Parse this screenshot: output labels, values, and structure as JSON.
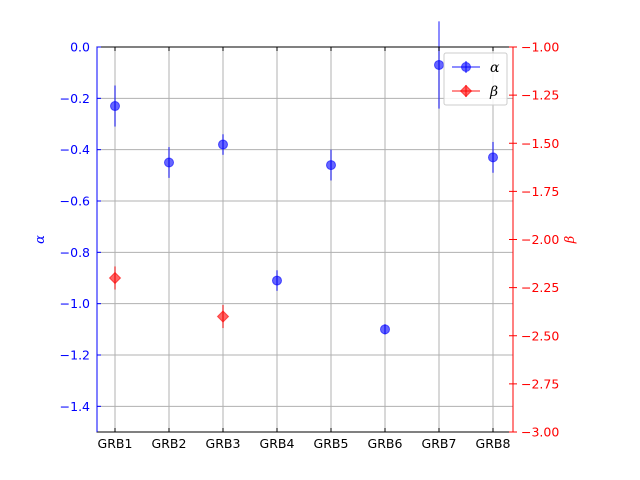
{
  "chart_data": {
    "type": "scatter",
    "categories": [
      "GRB1",
      "GRB2",
      "GRB3",
      "GRB4",
      "GRB5",
      "GRB6",
      "GRB7",
      "GRB8"
    ],
    "series": [
      {
        "name": "α",
        "axis": "left",
        "color": "#0000ff",
        "marker": "circle",
        "values": [
          -0.23,
          -0.45,
          -0.38,
          -0.91,
          -0.46,
          -1.1,
          -0.07,
          -0.43
        ],
        "errors": [
          0.08,
          0.06,
          0.04,
          0.04,
          0.06,
          0.02,
          0.17,
          0.06
        ]
      },
      {
        "name": "β",
        "axis": "right",
        "color": "#ff0000",
        "marker": "diamond",
        "values": [
          -2.2,
          null,
          -2.4,
          null,
          null,
          null,
          null,
          null
        ],
        "errors": [
          0.06,
          null,
          0.06,
          null,
          null,
          null,
          null,
          null
        ]
      }
    ],
    "ylabel_left": "α",
    "ylabel_right": "β",
    "ylim_left": [
      -1.5,
      0.0
    ],
    "ylim_right": [
      -3.0,
      -1.0
    ],
    "yticks_left": [
      "0.0",
      "−0.2",
      "−0.4",
      "−0.6",
      "−0.8",
      "−1.0",
      "−1.2",
      "−1.4"
    ],
    "yticks_right": [
      "−1.00",
      "−1.25",
      "−1.50",
      "−1.75",
      "−2.00",
      "−2.25",
      "−2.50",
      "−2.75",
      "−3.00"
    ],
    "grid": true,
    "legend_position": "top-right"
  }
}
